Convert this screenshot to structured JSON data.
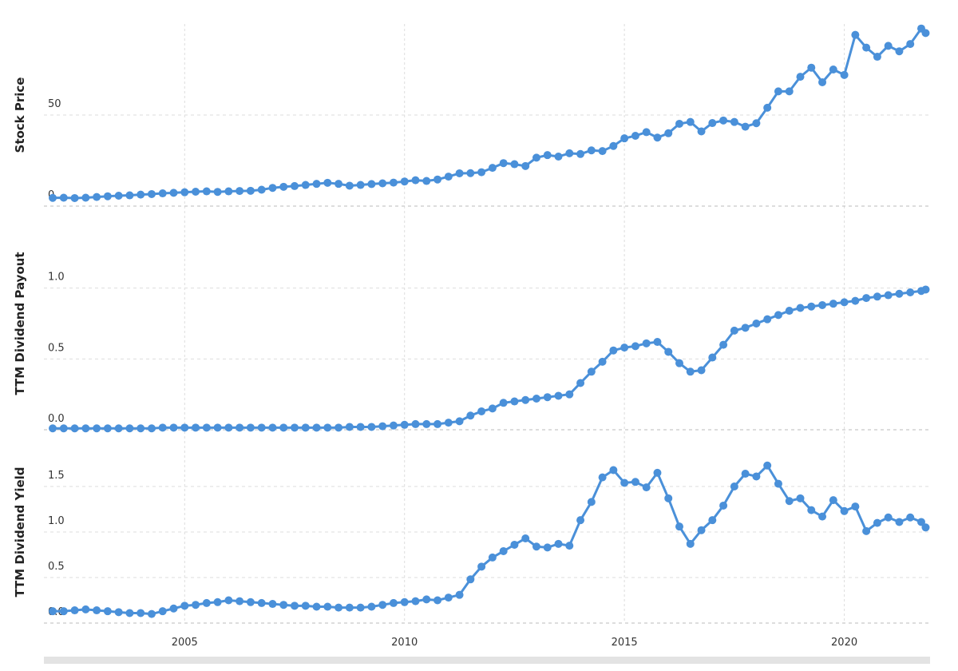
{
  "chart_data": [
    {
      "type": "line",
      "ylabel": "Stock Price",
      "color": "#4a90d9",
      "x": [
        2002,
        2002.25,
        2002.5,
        2002.75,
        2003,
        2003.25,
        2003.5,
        2003.75,
        2004,
        2004.25,
        2004.5,
        2004.75,
        2005,
        2005.25,
        2005.5,
        2005.75,
        2006,
        2006.25,
        2006.5,
        2006.75,
        2007,
        2007.25,
        2007.5,
        2007.75,
        2008,
        2008.25,
        2008.5,
        2008.75,
        2009,
        2009.25,
        2009.5,
        2009.75,
        2010,
        2010.25,
        2010.5,
        2010.75,
        2011,
        2011.25,
        2011.5,
        2011.75,
        2012,
        2012.25,
        2012.5,
        2012.75,
        2013,
        2013.25,
        2013.5,
        2013.75,
        2014,
        2014.25,
        2014.5,
        2014.75,
        2015,
        2015.25,
        2015.5,
        2015.75,
        2016,
        2016.25,
        2016.5,
        2016.75,
        2017,
        2017.25,
        2017.5,
        2017.75,
        2018,
        2018.25,
        2018.5,
        2018.75,
        2019,
        2019.25,
        2019.5,
        2019.75,
        2020,
        2020.25,
        2020.5,
        2020.75,
        2021,
        2021.25,
        2021.5,
        2021.75,
        2021.85
      ],
      "values": [
        4.5,
        4.6,
        4.4,
        4.6,
        5.0,
        5.4,
        5.7,
        5.9,
        6.3,
        6.6,
        7.0,
        7.3,
        7.6,
        7.9,
        8.1,
        7.8,
        8.1,
        8.3,
        8.4,
        9.0,
        10.0,
        10.6,
        11.0,
        11.6,
        12.2,
        12.8,
        12.2,
        11.2,
        11.6,
        12.1,
        12.5,
        12.9,
        13.5,
        14.2,
        13.8,
        14.6,
        16.2,
        18.0,
        18.1,
        18.6,
        21.0,
        23.6,
        23.0,
        22.0,
        26.6,
        28.0,
        27.2,
        29.0,
        28.6,
        30.6,
        30.2,
        33.0,
        37.2,
        38.6,
        40.6,
        37.6,
        40.0,
        45.2,
        46.2,
        41.0,
        45.6,
        47.0,
        46.2,
        43.6,
        45.5,
        54,
        63,
        63,
        71,
        76,
        68,
        75,
        72,
        94,
        87,
        82,
        88,
        85,
        89,
        97.5,
        95
      ],
      "xlim": [
        2001.8,
        2021.95
      ],
      "ylim": [
        0,
        100
      ],
      "yticks": [
        0,
        50
      ],
      "grid": true
    },
    {
      "type": "line",
      "ylabel": "TTM Dividend Payout",
      "color": "#4a90d9",
      "x": [
        2002,
        2002.25,
        2002.5,
        2002.75,
        2003,
        2003.25,
        2003.5,
        2003.75,
        2004,
        2004.25,
        2004.5,
        2004.75,
        2005,
        2005.25,
        2005.5,
        2005.75,
        2006,
        2006.25,
        2006.5,
        2006.75,
        2007,
        2007.25,
        2007.5,
        2007.75,
        2008,
        2008.25,
        2008.5,
        2008.75,
        2009,
        2009.25,
        2009.5,
        2009.75,
        2010,
        2010.25,
        2010.5,
        2010.75,
        2011,
        2011.25,
        2011.5,
        2011.75,
        2012,
        2012.25,
        2012.5,
        2012.75,
        2013,
        2013.25,
        2013.5,
        2013.75,
        2014,
        2014.25,
        2014.5,
        2014.75,
        2015,
        2015.25,
        2015.5,
        2015.75,
        2016,
        2016.25,
        2016.5,
        2016.75,
        2017,
        2017.25,
        2017.5,
        2017.75,
        2018,
        2018.25,
        2018.5,
        2018.75,
        2019,
        2019.25,
        2019.5,
        2019.75,
        2020,
        2020.25,
        2020.5,
        2020.75,
        2021,
        2021.25,
        2021.5,
        2021.75,
        2021.85
      ],
      "values": [
        0.01,
        0.01,
        0.01,
        0.01,
        0.01,
        0.01,
        0.01,
        0.01,
        0.01,
        0.01,
        0.015,
        0.015,
        0.015,
        0.015,
        0.015,
        0.015,
        0.015,
        0.015,
        0.015,
        0.015,
        0.015,
        0.015,
        0.015,
        0.015,
        0.015,
        0.015,
        0.015,
        0.02,
        0.02,
        0.02,
        0.025,
        0.03,
        0.035,
        0.04,
        0.04,
        0.04,
        0.05,
        0.06,
        0.1,
        0.13,
        0.15,
        0.19,
        0.2,
        0.21,
        0.22,
        0.23,
        0.24,
        0.25,
        0.33,
        0.41,
        0.48,
        0.56,
        0.58,
        0.59,
        0.61,
        0.62,
        0.55,
        0.47,
        0.41,
        0.42,
        0.51,
        0.6,
        0.7,
        0.72,
        0.75,
        0.78,
        0.81,
        0.84,
        0.86,
        0.87,
        0.88,
        0.89,
        0.9,
        0.91,
        0.93,
        0.94,
        0.95,
        0.96,
        0.97,
        0.98,
        0.99
      ],
      "xlim": [
        2001.8,
        2021.95
      ],
      "ylim": [
        0,
        1.5
      ],
      "yticks": [
        {
          "value": 0,
          "label": "0.0"
        },
        0.5,
        {
          "value": 1,
          "label": "1.0"
        }
      ],
      "grid": true
    },
    {
      "type": "line",
      "ylabel": "TTM Dividend Yield",
      "color": "#4a90d9",
      "x": [
        2002,
        2002.25,
        2002.5,
        2002.75,
        2003,
        2003.25,
        2003.5,
        2003.75,
        2004,
        2004.25,
        2004.5,
        2004.75,
        2005,
        2005.25,
        2005.5,
        2005.75,
        2006,
        2006.25,
        2006.5,
        2006.75,
        2007,
        2007.25,
        2007.5,
        2007.75,
        2008,
        2008.25,
        2008.5,
        2008.75,
        2009,
        2009.25,
        2009.5,
        2009.75,
        2010,
        2010.25,
        2010.5,
        2010.75,
        2011,
        2011.25,
        2011.5,
        2011.75,
        2012,
        2012.25,
        2012.5,
        2012.75,
        2013,
        2013.25,
        2013.5,
        2013.75,
        2014,
        2014.25,
        2014.5,
        2014.75,
        2015,
        2015.25,
        2015.5,
        2015.75,
        2016,
        2016.25,
        2016.5,
        2016.75,
        2017,
        2017.25,
        2017.5,
        2017.75,
        2018,
        2018.25,
        2018.5,
        2018.75,
        2019,
        2019.25,
        2019.5,
        2019.75,
        2020,
        2020.25,
        2020.5,
        2020.75,
        2021,
        2021.25,
        2021.5,
        2021.75,
        2021.85
      ],
      "values": [
        0.13,
        0.13,
        0.14,
        0.15,
        0.14,
        0.13,
        0.12,
        0.11,
        0.11,
        0.1,
        0.13,
        0.16,
        0.19,
        0.2,
        0.22,
        0.23,
        0.25,
        0.24,
        0.23,
        0.22,
        0.21,
        0.2,
        0.19,
        0.19,
        0.18,
        0.18,
        0.17,
        0.17,
        0.17,
        0.18,
        0.2,
        0.22,
        0.23,
        0.24,
        0.26,
        0.25,
        0.28,
        0.31,
        0.48,
        0.62,
        0.72,
        0.79,
        0.86,
        0.93,
        0.84,
        0.83,
        0.87,
        0.85,
        1.13,
        1.33,
        1.6,
        1.68,
        1.54,
        1.55,
        1.49,
        1.65,
        1.37,
        1.06,
        0.87,
        1.02,
        1.13,
        1.29,
        1.5,
        1.64,
        1.61,
        1.73,
        1.53,
        1.34,
        1.37,
        1.24,
        1.17,
        1.35,
        1.23,
        1.28,
        1.01,
        1.1,
        1.16,
        1.11,
        1.16,
        1.11,
        1.05
      ],
      "xlim": [
        2001.8,
        2021.95
      ],
      "ylim": [
        0,
        2
      ],
      "yticks": [
        {
          "value": 0,
          "label": "0.0"
        },
        0.5,
        {
          "value": 1,
          "label": "1.0"
        },
        1.5
      ],
      "xticks": [
        2005,
        2010,
        2015,
        2020
      ],
      "grid": true
    }
  ]
}
